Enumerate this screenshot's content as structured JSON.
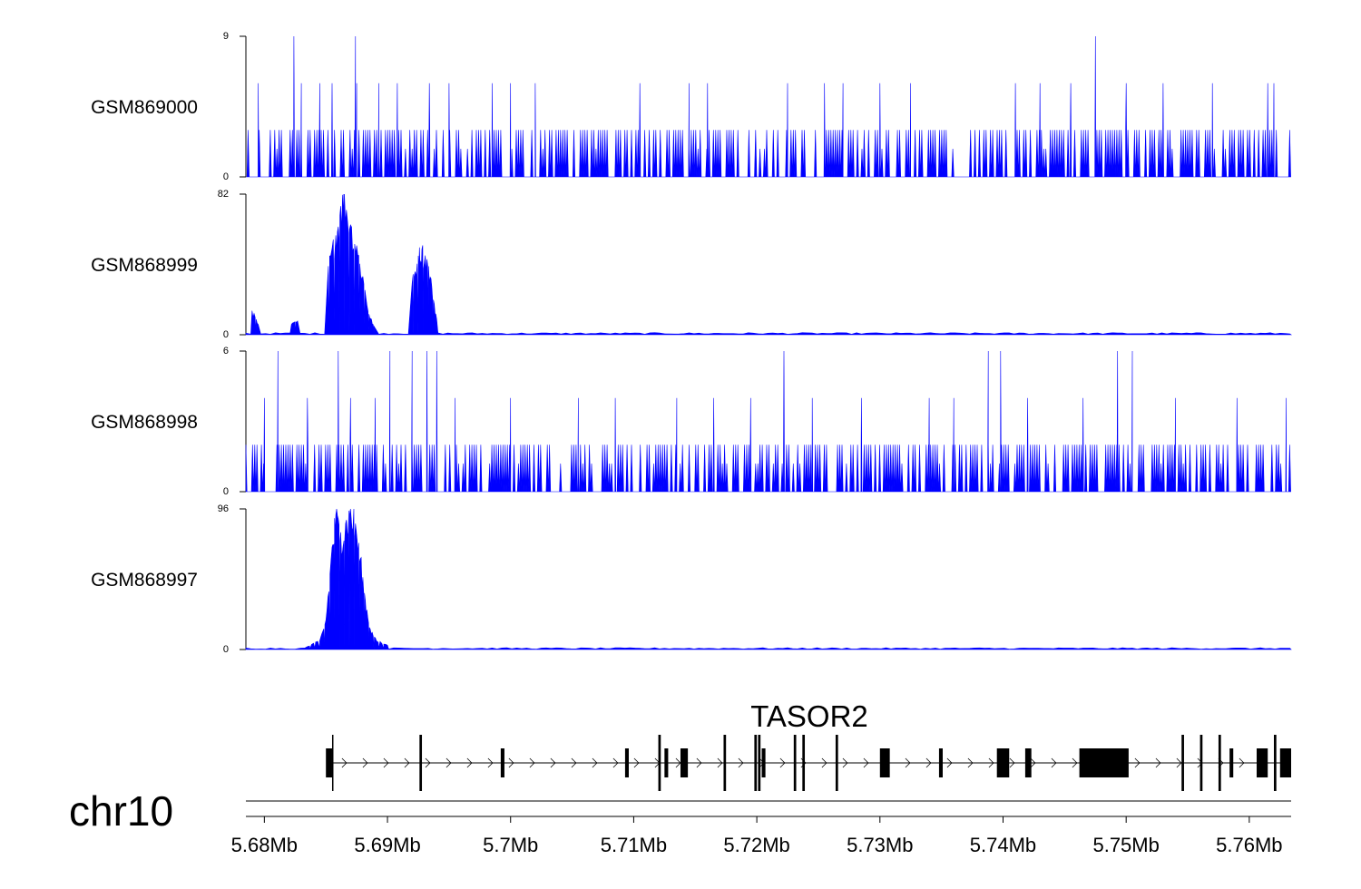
{
  "chart_data": {
    "type": "area",
    "x_unit": "Mb",
    "xlim": [
      5.6785,
      5.7634
    ],
    "genome_ticks": [
      {
        "value": 5.68,
        "label": "5.68Mb"
      },
      {
        "value": 5.69,
        "label": "5.69Mb"
      },
      {
        "value": 5.7,
        "label": "5.7Mb"
      },
      {
        "value": 5.71,
        "label": "5.71Mb"
      },
      {
        "value": 5.72,
        "label": "5.72Mb"
      },
      {
        "value": 5.73,
        "label": "5.73Mb"
      },
      {
        "value": 5.74,
        "label": "5.74Mb"
      },
      {
        "value": 5.75,
        "label": "5.75Mb"
      },
      {
        "value": 5.76,
        "label": "5.76Mb"
      }
    ],
    "chromosome": "chr10",
    "tracks": [
      {
        "name": "GSM869000",
        "ylim": [
          0,
          9
        ],
        "y_tick_labels": [
          "0",
          "9"
        ],
        "color": "#0000ff",
        "kind": "sparse",
        "baseline": 0,
        "typical_level": 3,
        "peaks": [
          [
            5.6824,
            9
          ],
          [
            5.6874,
            9
          ],
          [
            5.7475,
            9
          ],
          [
            5.6795,
            6
          ],
          [
            5.683,
            6
          ],
          [
            5.6845,
            6
          ],
          [
            5.6855,
            6
          ],
          [
            5.6875,
            6
          ],
          [
            5.6893,
            6
          ],
          [
            5.6908,
            6
          ],
          [
            5.6934,
            6
          ],
          [
            5.695,
            6
          ],
          [
            5.6985,
            6
          ],
          [
            5.7,
            6
          ],
          [
            5.702,
            6
          ],
          [
            5.7105,
            6
          ],
          [
            5.7145,
            6
          ],
          [
            5.716,
            6
          ],
          [
            5.7225,
            6
          ],
          [
            5.7255,
            6
          ],
          [
            5.727,
            6
          ],
          [
            5.73,
            6
          ],
          [
            5.7325,
            6
          ],
          [
            5.741,
            6
          ],
          [
            5.743,
            6
          ],
          [
            5.7455,
            6
          ],
          [
            5.75,
            6
          ],
          [
            5.753,
            6
          ],
          [
            5.757,
            6
          ],
          [
            5.7615,
            6
          ],
          [
            5.762,
            6
          ]
        ]
      },
      {
        "name": "GSM868999",
        "ylim": [
          0,
          82
        ],
        "y_tick_labels": [
          "0",
          "82"
        ],
        "color": "#0000ff",
        "kind": "peaks",
        "baseline": 1,
        "peaks": [
          [
            5.679,
            14
          ],
          [
            5.6795,
            6
          ],
          [
            5.6822,
            6
          ],
          [
            5.6827,
            8
          ],
          [
            5.6852,
            40
          ],
          [
            5.6858,
            58
          ],
          [
            5.6862,
            75
          ],
          [
            5.6865,
            82
          ],
          [
            5.687,
            64
          ],
          [
            5.6875,
            52
          ],
          [
            5.688,
            34
          ],
          [
            5.6885,
            12
          ],
          [
            5.6889,
            5
          ],
          [
            5.692,
            30
          ],
          [
            5.6925,
            46
          ],
          [
            5.6928,
            50
          ],
          [
            5.6932,
            44
          ],
          [
            5.6936,
            28
          ],
          [
            5.694,
            9
          ]
        ]
      },
      {
        "name": "GSM868998",
        "ylim": [
          0,
          6
        ],
        "y_tick_labels": [
          "0",
          "6"
        ],
        "color": "#0000ff",
        "kind": "sparse",
        "baseline": 0,
        "typical_level": 2,
        "peaks": [
          [
            5.6811,
            6
          ],
          [
            5.686,
            6
          ],
          [
            5.6902,
            6
          ],
          [
            5.692,
            6
          ],
          [
            5.6932,
            6
          ],
          [
            5.694,
            6
          ],
          [
            5.7222,
            6
          ],
          [
            5.7388,
            6
          ],
          [
            5.7398,
            6
          ],
          [
            5.7493,
            6
          ],
          [
            5.7505,
            6
          ],
          [
            5.68,
            4
          ],
          [
            5.6835,
            4
          ],
          [
            5.687,
            4
          ],
          [
            5.689,
            4
          ],
          [
            5.6955,
            4
          ],
          [
            5.7,
            4
          ],
          [
            5.7055,
            4
          ],
          [
            5.7085,
            4
          ],
          [
            5.7135,
            4
          ],
          [
            5.7165,
            4
          ],
          [
            5.7195,
            4
          ],
          [
            5.7245,
            4
          ],
          [
            5.7285,
            4
          ],
          [
            5.734,
            4
          ],
          [
            5.736,
            4
          ],
          [
            5.742,
            4
          ],
          [
            5.7465,
            4
          ],
          [
            5.754,
            4
          ],
          [
            5.759,
            4
          ],
          [
            5.763,
            4
          ]
        ]
      },
      {
        "name": "GSM868997",
        "ylim": [
          0,
          96
        ],
        "y_tick_labels": [
          "0",
          "96"
        ],
        "color": "#0000ff",
        "kind": "peaks",
        "baseline": 1,
        "peaks": [
          [
            5.6835,
            2
          ],
          [
            5.6845,
            6
          ],
          [
            5.685,
            20
          ],
          [
            5.6855,
            70
          ],
          [
            5.6858,
            92
          ],
          [
            5.6862,
            80
          ],
          [
            5.6866,
            86
          ],
          [
            5.687,
            96
          ],
          [
            5.6874,
            86
          ],
          [
            5.6878,
            62
          ],
          [
            5.6882,
            34
          ],
          [
            5.6886,
            14
          ],
          [
            5.6891,
            6
          ],
          [
            5.69,
            3
          ]
        ]
      }
    ],
    "gene": {
      "name": "TASOR2",
      "start": 5.6852,
      "end": 5.7634,
      "strand": "+",
      "exons": [
        [
          5.685,
          5.6855
        ],
        [
          5.6926,
          5.6928
        ],
        [
          5.6992,
          5.6995
        ],
        [
          5.7093,
          5.7096
        ],
        [
          5.712,
          5.7122
        ],
        [
          5.7125,
          5.7128
        ],
        [
          5.7138,
          5.7144
        ],
        [
          5.7173,
          5.7175
        ],
        [
          5.7198,
          5.72
        ],
        [
          5.7201,
          5.7203
        ],
        [
          5.7204,
          5.7207
        ],
        [
          5.723,
          5.7232
        ],
        [
          5.7237,
          5.7239
        ],
        [
          5.7264,
          5.7266
        ],
        [
          5.73,
          5.7308
        ],
        [
          5.7348,
          5.7351
        ],
        [
          5.7395,
          5.7405
        ],
        [
          5.7418,
          5.7423
        ],
        [
          5.7462,
          5.7502
        ],
        [
          5.7545,
          5.7547
        ],
        [
          5.756,
          5.7562
        ],
        [
          5.7575,
          5.7577
        ],
        [
          5.7584,
          5.7587
        ],
        [
          5.7606,
          5.7615
        ],
        [
          5.762,
          5.7622
        ],
        [
          5.7625,
          5.7634
        ]
      ]
    }
  }
}
